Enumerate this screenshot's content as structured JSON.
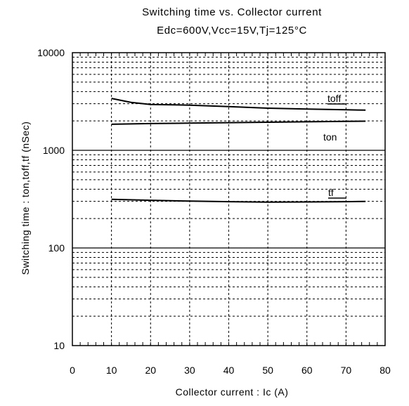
{
  "chart_data": {
    "type": "line",
    "title": "Switching time vs. Collector current",
    "subtitle": "Edc=600V,Vcc=15V,Tj=125°C",
    "xlabel": "Collector current : Ic (A)",
    "ylabel": "Switching time : ton,toff,tf (nSec)",
    "xlim": [
      0,
      80
    ],
    "ylim": [
      10,
      10000
    ],
    "yscale": "log",
    "grid": true,
    "x_ticks": [
      "0",
      "10",
      "20",
      "30",
      "40",
      "50",
      "60",
      "70",
      "80"
    ],
    "y_ticks": [
      "10",
      "100",
      "1000",
      "10000"
    ],
    "series": [
      {
        "name": "toff",
        "x": [
          10,
          15,
          20,
          30,
          40,
          50,
          60,
          70,
          75
        ],
        "y": [
          3400,
          3100,
          2950,
          2900,
          2800,
          2700,
          2650,
          2600,
          2580
        ]
      },
      {
        "name": "ton",
        "x": [
          10,
          20,
          30,
          40,
          50,
          60,
          70,
          75
        ],
        "y": [
          1850,
          1880,
          1900,
          1920,
          1940,
          1960,
          1980,
          1990
        ]
      },
      {
        "name": "tf",
        "x": [
          10,
          20,
          30,
          40,
          50,
          60,
          70,
          75
        ],
        "y": [
          315,
          308,
          302,
          298,
          295,
          296,
          298,
          300
        ]
      }
    ]
  }
}
